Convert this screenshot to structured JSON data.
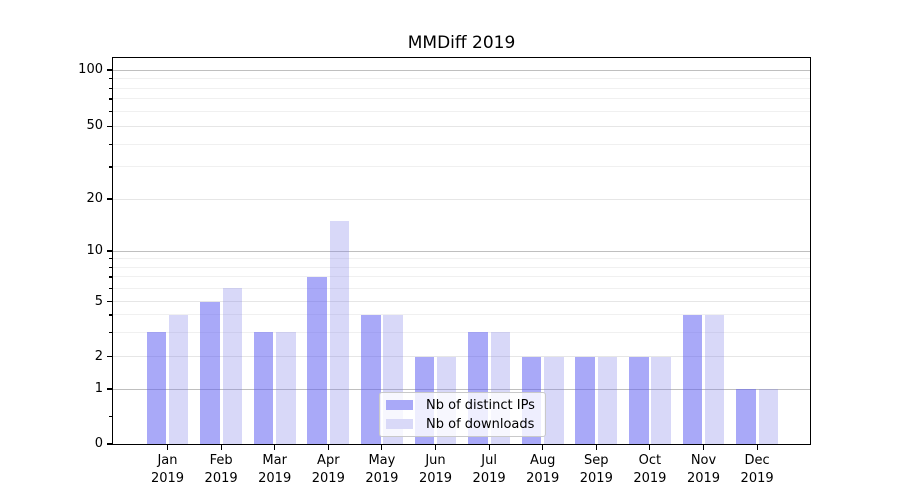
{
  "title": "MMDiff 2019",
  "chart_data": {
    "type": "bar",
    "title": "MMDiff 2019",
    "x_axis": {
      "months": [
        "Jan",
        "Feb",
        "Mar",
        "Apr",
        "May",
        "Jun",
        "Jul",
        "Aug",
        "Sep",
        "Oct",
        "Nov",
        "Dec"
      ],
      "year": "2019"
    },
    "y_axis": {
      "scale": "asinh-log",
      "major_ticks": [
        0,
        1,
        2,
        5,
        10,
        20,
        50,
        100
      ],
      "minor_ticks": [
        0.5,
        3,
        4,
        6,
        7,
        8,
        9,
        30,
        40,
        60,
        70,
        80,
        90
      ],
      "ylim": [
        0,
        117
      ]
    },
    "series": [
      {
        "name": "Nb of distinct IPs",
        "swatch_color": "#a9a9f8",
        "fill_color": "rgba(92,92,242,0.53)",
        "values": [
          3,
          5,
          3,
          7,
          4,
          2,
          3,
          2,
          2,
          2,
          4,
          1
        ]
      },
      {
        "name": "Nb of downloads",
        "swatch_color": "#d9d9f8",
        "fill_color": "rgba(125,125,232,0.30)",
        "values": [
          4,
          6,
          3,
          15,
          4,
          2,
          3,
          2,
          2,
          2,
          4,
          1
        ]
      }
    ],
    "grid": {
      "decade_line_color": "#bfbfbf",
      "major_line_color": "#e6e6e6",
      "minor_line_color": "#f0f0f0",
      "legend_position": "lower center"
    }
  }
}
